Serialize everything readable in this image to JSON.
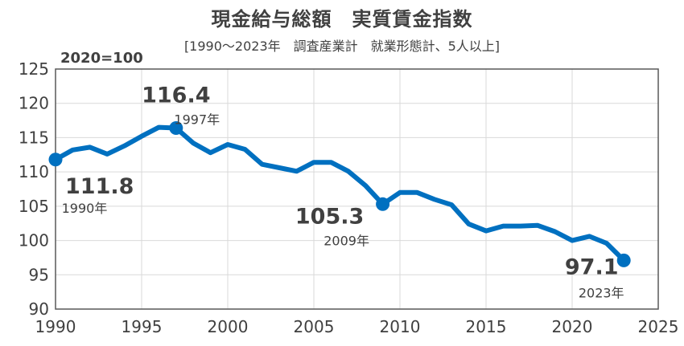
{
  "chart_data": {
    "type": "line",
    "title": "現金給与総額　実質賃金指数",
    "subtitle": "[1990～2023年　調査産業計　就業形態計、5人以上]",
    "base_label": "2020=100",
    "xlim": [
      1990,
      2025
    ],
    "ylim": [
      90,
      125
    ],
    "x_ticks": [
      1990,
      1995,
      2000,
      2005,
      2010,
      2015,
      2020,
      2025
    ],
    "y_ticks": [
      90,
      95,
      100,
      105,
      110,
      115,
      120,
      125
    ],
    "grid": true,
    "color": "#0070C0",
    "series": [
      {
        "x": [
          1990,
          1991,
          1992,
          1993,
          1994,
          1995,
          1996,
          1997,
          1998,
          1999,
          2000,
          2001,
          2002,
          2003,
          2004,
          2005,
          2006,
          2007,
          2008,
          2009,
          2010,
          2011,
          2012,
          2013,
          2014,
          2015,
          2016,
          2017,
          2018,
          2019,
          2020,
          2021,
          2022,
          2023
        ],
        "values": [
          111.8,
          113.2,
          113.6,
          112.6,
          113.8,
          115.2,
          116.5,
          116.4,
          114.2,
          112.8,
          114.0,
          113.3,
          111.1,
          110.6,
          110.1,
          111.4,
          111.4,
          110.1,
          108.0,
          105.3,
          107.0,
          107.0,
          106.0,
          105.2,
          102.4,
          101.4,
          102.1,
          102.1,
          102.2,
          101.3,
          100.0,
          100.6,
          99.6,
          97.1
        ]
      }
    ],
    "annotations": [
      {
        "x": 1990,
        "y": 111.8,
        "value": "111.8",
        "year": "1990年"
      },
      {
        "x": 1997,
        "y": 116.4,
        "value": "116.4",
        "year": "1997年"
      },
      {
        "x": 2009,
        "y": 105.3,
        "value": "105.3",
        "year": "2009年"
      },
      {
        "x": 2023,
        "y": 97.1,
        "value": "97.1",
        "year": "2023年"
      }
    ]
  }
}
